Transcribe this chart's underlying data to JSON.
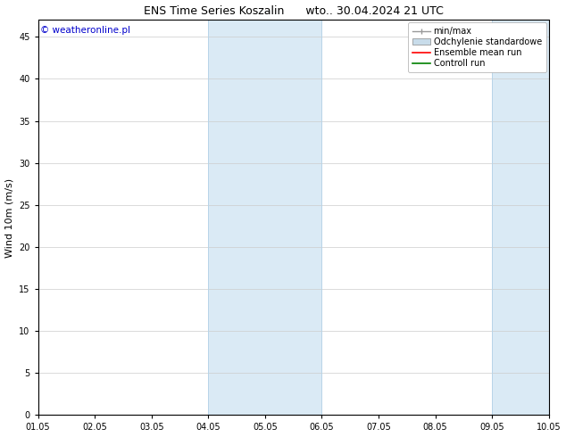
{
  "title": "ENS Time Series Koszalin      wto.. 30.04.2024 21 UTC",
  "ylabel": "Wind 10m (m/s)",
  "xlabel": "",
  "xlim": [
    0,
    9
  ],
  "ylim": [
    0,
    47
  ],
  "yticks": [
    0,
    5,
    10,
    15,
    20,
    25,
    30,
    35,
    40,
    45
  ],
  "xtick_labels": [
    "01.05",
    "02.05",
    "03.05",
    "04.05",
    "05.05",
    "06.05",
    "07.05",
    "08.05",
    "09.05",
    "10.05"
  ],
  "background_color": "#ffffff",
  "plot_bg_color": "#ffffff",
  "shaded_regions": [
    {
      "xmin": 3.0,
      "xmax": 5.0,
      "color": "#daeaf5"
    },
    {
      "xmin": 8.0,
      "xmax": 9.0,
      "color": "#daeaf5"
    }
  ],
  "shaded_vlines_color": "#b8d4e8",
  "watermark_text": "© weatheronline.pl",
  "watermark_color": "#0000cc",
  "legend_entries": [
    {
      "label": "min/max",
      "color": "#999999",
      "style": "errorbar"
    },
    {
      "label": "Odchylenie standardowe",
      "color": "#c8dcea",
      "style": "box"
    },
    {
      "label": "Ensemble mean run",
      "color": "#ff0000",
      "style": "line"
    },
    {
      "label": "Controll run",
      "color": "#008000",
      "style": "line"
    }
  ],
  "title_fontsize": 9,
  "tick_fontsize": 7,
  "ylabel_fontsize": 8,
  "watermark_fontsize": 7.5,
  "legend_fontsize": 7,
  "border_color": "#000000",
  "tick_color": "#000000",
  "grid_color": "#cccccc",
  "grid_linestyle": "-",
  "grid_linewidth": 0.5
}
